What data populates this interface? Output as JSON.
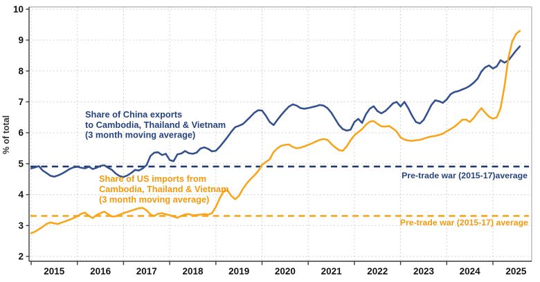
{
  "chart_data": {
    "type": "line",
    "title": "",
    "ylabel": "% of total",
    "ylim": [
      1.84,
      10.07
    ],
    "xlim_years": [
      2014.95,
      2025.85
    ],
    "grid": true,
    "legend_position": "inline-annotations",
    "y_ticks": [
      2,
      3,
      4,
      5,
      6,
      7,
      8,
      9,
      10
    ],
    "y_tick_labels": [
      "2",
      "3",
      "4",
      "5",
      "6",
      "7",
      "8",
      "9",
      "10"
    ],
    "x_tick_years": [
      2015,
      2016,
      2017,
      2018,
      2019,
      2020,
      2021,
      2022,
      2023,
      2024,
      2025
    ],
    "x_tick_labels": [
      "2015",
      "2016",
      "2017",
      "2018",
      "2019",
      "2020",
      "2021",
      "2022",
      "2023",
      "2024",
      "2025"
    ],
    "x_start_year": 2015,
    "points_per_year": 12,
    "colors": {
      "china_line": "#33518F",
      "china_text": "#26437F",
      "china_dashed": "#1C3A6B",
      "us_line": "#F9A51B",
      "us_text": "#F4990C",
      "grid": "#C9C9C9",
      "axis": "#3A3A3A",
      "tick_text": "#141414"
    },
    "series": [
      {
        "name": "china-exports",
        "legend_lines": [
          "Share of China exports",
          "to Cambodia, Thailand & Vietnam",
          "(3 month moving average)"
        ],
        "color": "#33518F",
        "label_color": "#26437F",
        "start": "2015-01",
        "end": "2025-08",
        "values": [
          4.85,
          4.88,
          4.92,
          4.78,
          4.7,
          4.61,
          4.58,
          4.62,
          4.68,
          4.75,
          4.83,
          4.88,
          4.9,
          4.87,
          4.85,
          4.9,
          4.83,
          4.87,
          4.93,
          4.95,
          4.87,
          4.8,
          4.68,
          4.6,
          4.57,
          4.62,
          4.7,
          4.8,
          4.78,
          4.85,
          4.96,
          5.25,
          5.36,
          5.37,
          5.28,
          5.32,
          5.12,
          5.08,
          5.3,
          5.33,
          5.41,
          5.34,
          5.32,
          5.36,
          5.49,
          5.53,
          5.48,
          5.4,
          5.42,
          5.55,
          5.7,
          5.86,
          6.03,
          6.18,
          6.23,
          6.28,
          6.4,
          6.52,
          6.65,
          6.73,
          6.72,
          6.55,
          6.35,
          6.25,
          6.42,
          6.58,
          6.72,
          6.85,
          6.92,
          6.88,
          6.8,
          6.78,
          6.8,
          6.83,
          6.86,
          6.9,
          6.88,
          6.8,
          6.65,
          6.45,
          6.25,
          6.12,
          6.07,
          6.1,
          6.35,
          6.45,
          6.32,
          6.6,
          6.78,
          6.86,
          6.7,
          6.63,
          6.7,
          6.82,
          6.95,
          7.0,
          6.85,
          7.0,
          6.8,
          6.55,
          6.35,
          6.3,
          6.42,
          6.65,
          6.9,
          7.05,
          7.02,
          6.97,
          7.08,
          7.25,
          7.32,
          7.35,
          7.4,
          7.45,
          7.52,
          7.62,
          7.75,
          7.98,
          8.12,
          8.18,
          8.08,
          8.15,
          8.35,
          8.27,
          8.34,
          8.5,
          8.66,
          8.8
        ]
      },
      {
        "name": "us-imports",
        "legend_lines": [
          "Share of US imports from",
          "Cambodia, Thailand & Vietnam",
          "(3 month moving average)"
        ],
        "color": "#F9A51B",
        "label_color": "#F4990C",
        "start": "2015-01",
        "end": "2025-08",
        "values": [
          2.75,
          2.8,
          2.88,
          2.96,
          3.05,
          3.1,
          3.07,
          3.05,
          3.1,
          3.14,
          3.19,
          3.24,
          3.3,
          3.38,
          3.42,
          3.31,
          3.24,
          3.34,
          3.4,
          3.45,
          3.37,
          3.29,
          3.3,
          3.35,
          3.4,
          3.44,
          3.48,
          3.52,
          3.56,
          3.57,
          3.49,
          3.36,
          3.31,
          3.38,
          3.4,
          3.36,
          3.34,
          3.29,
          3.25,
          3.31,
          3.36,
          3.37,
          3.33,
          3.34,
          3.35,
          3.37,
          3.35,
          3.4,
          3.6,
          3.88,
          4.1,
          4.15,
          3.96,
          3.85,
          3.96,
          4.18,
          4.36,
          4.5,
          4.62,
          4.76,
          4.96,
          5.06,
          5.14,
          5.38,
          5.5,
          5.58,
          5.61,
          5.62,
          5.54,
          5.5,
          5.52,
          5.56,
          5.61,
          5.66,
          5.72,
          5.77,
          5.8,
          5.77,
          5.64,
          5.53,
          5.44,
          5.42,
          5.56,
          5.76,
          5.92,
          6.02,
          6.12,
          6.26,
          6.36,
          6.38,
          6.29,
          6.21,
          6.2,
          6.22,
          6.14,
          6.04,
          5.85,
          5.78,
          5.75,
          5.74,
          5.76,
          5.77,
          5.81,
          5.85,
          5.88,
          5.9,
          5.93,
          5.97,
          6.05,
          6.12,
          6.2,
          6.3,
          6.42,
          6.43,
          6.35,
          6.48,
          6.65,
          6.8,
          6.65,
          6.52,
          6.46,
          6.5,
          6.8,
          7.5,
          8.4,
          8.95,
          9.2,
          9.3
        ]
      }
    ],
    "reference_lines": [
      {
        "name": "china-pretradewar-avg",
        "value": 4.91,
        "label": "Pre-trade war (2015-17)average",
        "color": "#1C3A6B",
        "style": "dashed"
      },
      {
        "name": "us-pretradewar-avg",
        "value": 3.31,
        "label": "Pre-trade war (2015-17) average",
        "color": "#F9A51B",
        "style": "dashed"
      }
    ]
  }
}
